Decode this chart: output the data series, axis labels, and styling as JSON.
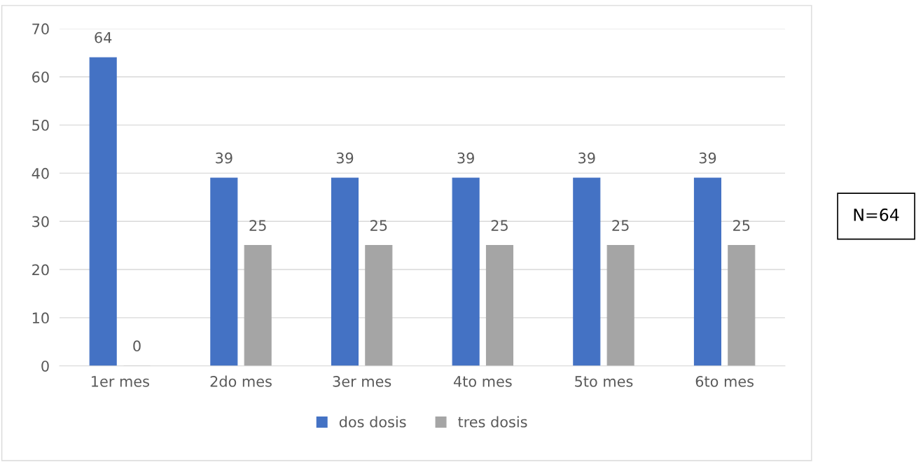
{
  "chart_data": {
    "type": "bar",
    "categories": [
      "1er mes",
      "2do mes",
      "3er mes",
      "4to mes",
      "5to mes",
      "6to mes"
    ],
    "series": [
      {
        "name": "dos dosis",
        "color": "#4472c4",
        "values": [
          64,
          39,
          39,
          39,
          39,
          39
        ]
      },
      {
        "name": "tres dosis",
        "color": "#a5a5a5",
        "values": [
          0,
          25,
          25,
          25,
          25,
          25
        ]
      }
    ],
    "ylim": [
      0,
      70
    ],
    "yticks": [
      0,
      10,
      20,
      30,
      40,
      50,
      60,
      70
    ],
    "grid": "y",
    "legend": "bottom",
    "data_labels": true,
    "annotations": [
      "N=64"
    ]
  }
}
